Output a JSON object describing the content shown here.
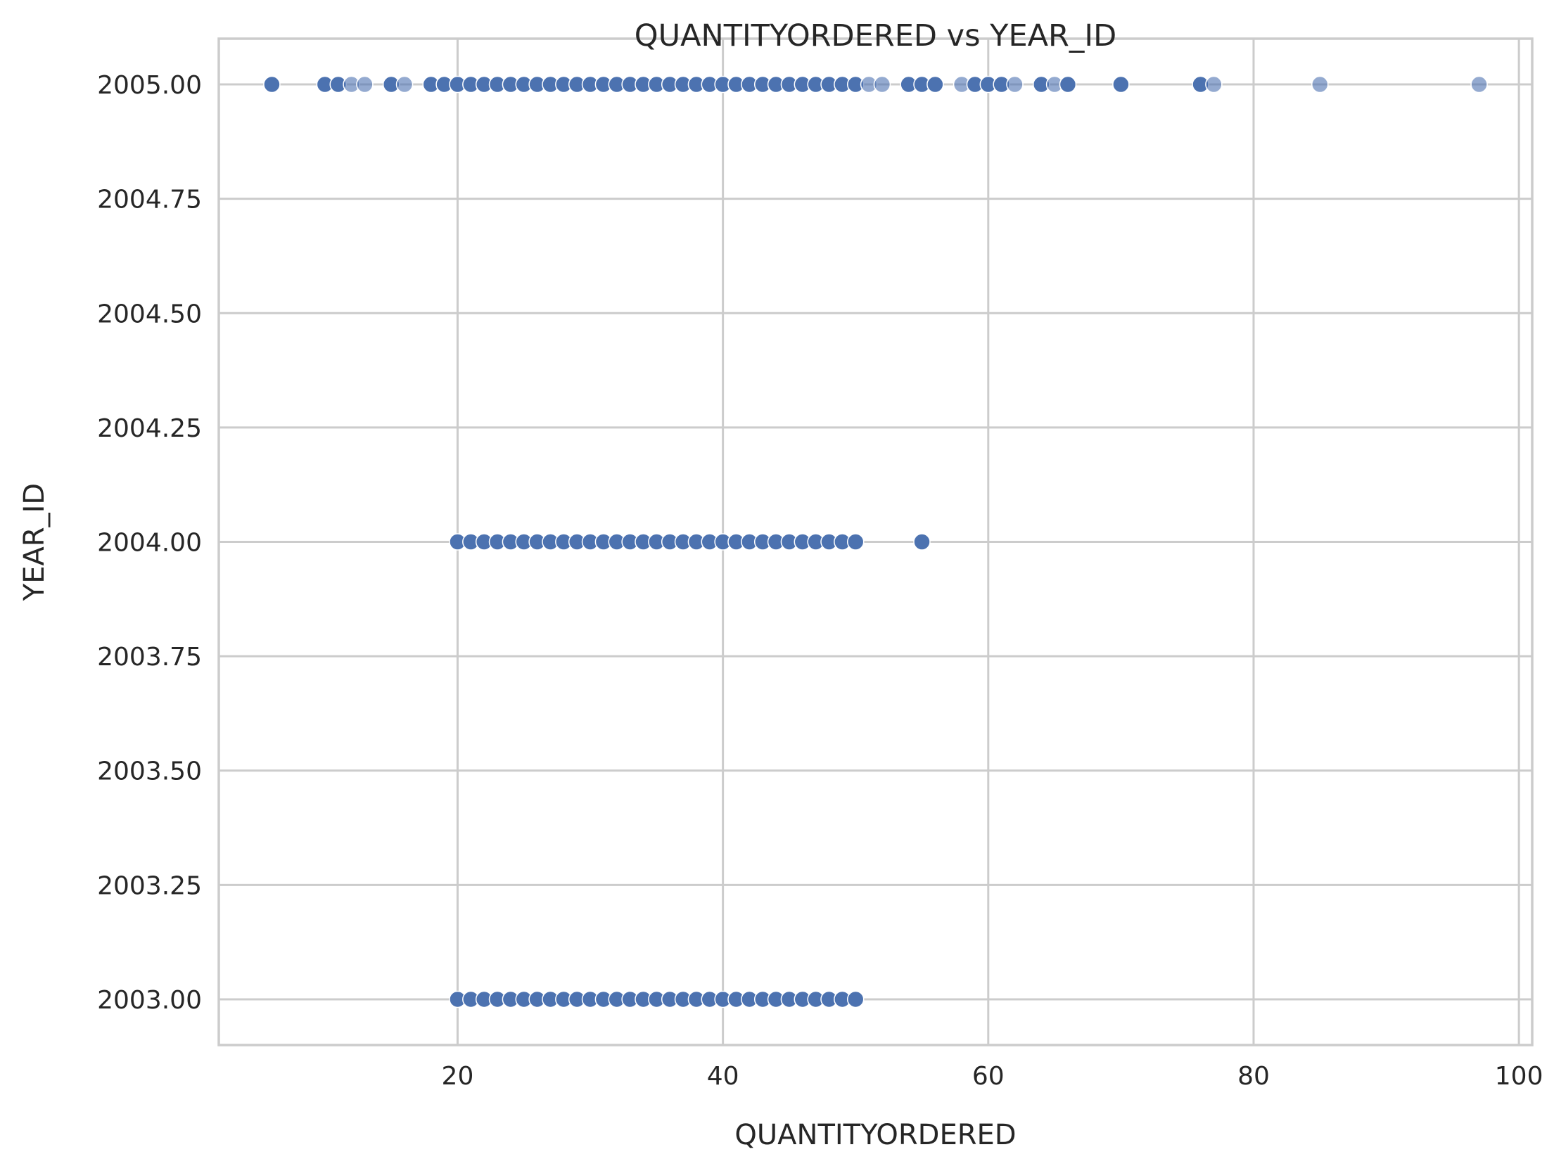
{
  "chart_data": {
    "type": "scatter",
    "title": "QUANTITYORDERED vs YEAR_ID",
    "xlabel": "QUANTITYORDERED",
    "ylabel": "YEAR_ID",
    "xlim": [
      2,
      101
    ],
    "ylim": [
      2002.9,
      2005.1
    ],
    "x_ticks": [
      20,
      40,
      60,
      80,
      100
    ],
    "x_tick_labels": [
      "20",
      "40",
      "60",
      "80",
      "100"
    ],
    "y_ticks": [
      2003.0,
      2003.25,
      2003.5,
      2003.75,
      2004.0,
      2004.25,
      2004.5,
      2004.75,
      2005.0
    ],
    "y_tick_labels": [
      "2003.00",
      "2003.25",
      "2003.50",
      "2003.75",
      "2004.00",
      "2004.25",
      "2004.50",
      "2004.75",
      "2005.00"
    ],
    "grid": true,
    "legend": "none",
    "marker_color": "#4c72b0",
    "background": "#ffffff",
    "grid_color": "#cccccc",
    "series": [
      {
        "x": [
          20,
          21,
          22,
          23,
          24,
          25,
          26,
          27,
          28,
          29,
          30,
          31,
          32,
          33,
          34,
          35,
          36,
          37,
          38,
          39,
          40,
          41,
          42,
          43,
          44,
          45,
          46,
          47,
          48,
          49,
          50
        ],
        "y": [
          2003,
          2003,
          2003,
          2003,
          2003,
          2003,
          2003,
          2003,
          2003,
          2003,
          2003,
          2003,
          2003,
          2003,
          2003,
          2003,
          2003,
          2003,
          2003,
          2003,
          2003,
          2003,
          2003,
          2003,
          2003,
          2003,
          2003,
          2003,
          2003,
          2003,
          2003
        ]
      },
      {
        "x": [
          20,
          21,
          22,
          23,
          24,
          25,
          26,
          27,
          28,
          29,
          30,
          31,
          32,
          33,
          34,
          35,
          36,
          37,
          38,
          39,
          40,
          41,
          42,
          43,
          44,
          45,
          46,
          47,
          48,
          49,
          50,
          55
        ],
        "y": [
          2004,
          2004,
          2004,
          2004,
          2004,
          2004,
          2004,
          2004,
          2004,
          2004,
          2004,
          2004,
          2004,
          2004,
          2004,
          2004,
          2004,
          2004,
          2004,
          2004,
          2004,
          2004,
          2004,
          2004,
          2004,
          2004,
          2004,
          2004,
          2004,
          2004,
          2004,
          2004
        ]
      },
      {
        "x": [
          6,
          10,
          11,
          12,
          13,
          15,
          16,
          18,
          19,
          20,
          21,
          22,
          23,
          24,
          25,
          26,
          27,
          28,
          29,
          30,
          31,
          32,
          33,
          34,
          35,
          36,
          37,
          38,
          39,
          40,
          41,
          42,
          43,
          44,
          45,
          46,
          47,
          48,
          49,
          50,
          51,
          52,
          54,
          55,
          56,
          58,
          59,
          60,
          61,
          62,
          64,
          65,
          66,
          70,
          76,
          77,
          85,
          97
        ],
        "y": [
          2005,
          2005,
          2005,
          2005,
          2005,
          2005,
          2005,
          2005,
          2005,
          2005,
          2005,
          2005,
          2005,
          2005,
          2005,
          2005,
          2005,
          2005,
          2005,
          2005,
          2005,
          2005,
          2005,
          2005,
          2005,
          2005,
          2005,
          2005,
          2005,
          2005,
          2005,
          2005,
          2005,
          2005,
          2005,
          2005,
          2005,
          2005,
          2005,
          2005,
          2005,
          2005,
          2005,
          2005,
          2005,
          2005,
          2005,
          2005,
          2005,
          2005,
          2005,
          2005,
          2005,
          2005,
          2005,
          2005,
          2005,
          2005
        ],
        "opacity": [
          1,
          1,
          1,
          0.6,
          0.6,
          1,
          0.6,
          1,
          1,
          1,
          1,
          1,
          1,
          1,
          1,
          1,
          1,
          1,
          1,
          1,
          1,
          1,
          1,
          1,
          1,
          1,
          1,
          1,
          1,
          1,
          1,
          1,
          1,
          1,
          1,
          1,
          1,
          1,
          1,
          1,
          0.6,
          0.6,
          1,
          1,
          1,
          0.6,
          1,
          1,
          1,
          0.6,
          1,
          0.6,
          1,
          1,
          1,
          0.6,
          0.6,
          0.6
        ]
      }
    ]
  }
}
